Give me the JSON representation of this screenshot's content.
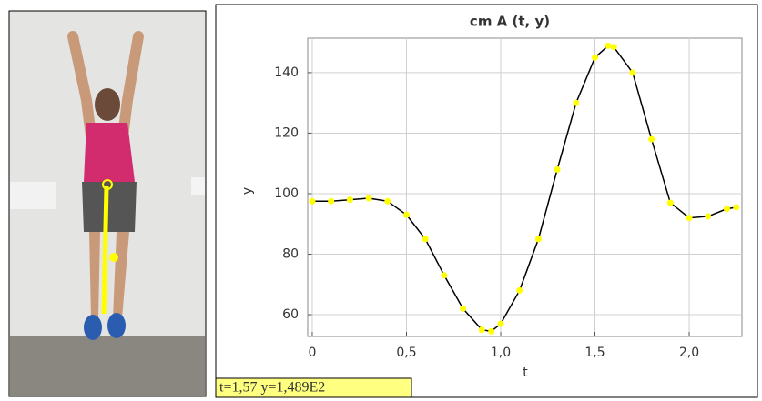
{
  "chart_data": {
    "type": "line",
    "title": "cm A (t, y)",
    "x_label": "t",
    "y_label": "y",
    "x": [
      0,
      0.1,
      0.2,
      0.3,
      0.4,
      0.5,
      0.6,
      0.7,
      0.8,
      0.9,
      0.95,
      1.0,
      1.1,
      1.2,
      1.3,
      1.4,
      1.5,
      1.57,
      1.6,
      1.7,
      1.8,
      1.9,
      2.0,
      2.1,
      2.2,
      2.25
    ],
    "series": [
      {
        "color": "#ffff00",
        "line_color": "#000000",
        "values": [
          97.5,
          97.5,
          98,
          98.5,
          97.5,
          93,
          85,
          73,
          62,
          55,
          54.5,
          57,
          68,
          85,
          108,
          130,
          145,
          148.9,
          148.5,
          140,
          118,
          97,
          92,
          92.5,
          95,
          95.5
        ]
      }
    ],
    "xlim": [
      -0.024,
      2.28
    ],
    "ylim": [
      52.8,
      151.4
    ],
    "xticks": [
      0,
      {
        "value": 0.5,
        "label": "0,5"
      },
      {
        "value": 1.0,
        "label": "1,0"
      },
      {
        "value": 1.5,
        "label": "1,5"
      },
      {
        "value": 2.0,
        "label": "2,0"
      }
    ],
    "yticks": [
      60,
      80,
      100,
      120,
      140
    ],
    "grid": true,
    "readout": "t=1,57  y=1,489E2"
  }
}
